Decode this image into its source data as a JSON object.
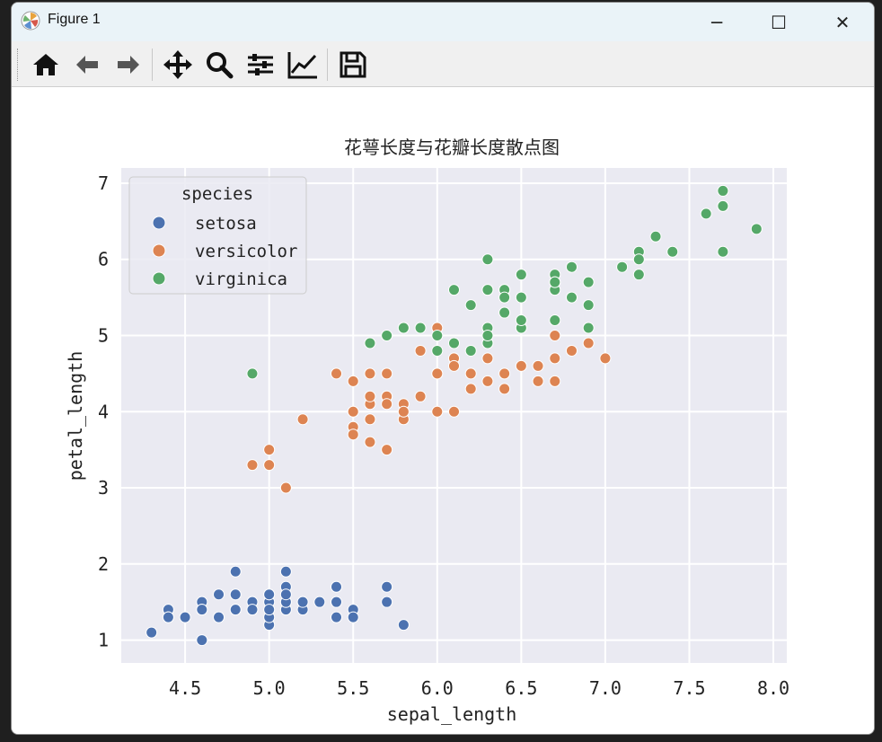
{
  "window": {
    "title": "Figure 1"
  },
  "window_controls": {
    "minimize": "─",
    "maximize": "☐",
    "close": "✕"
  },
  "toolbar": {
    "items": [
      {
        "name": "home-icon"
      },
      {
        "name": "back-icon"
      },
      {
        "name": "forward-icon"
      },
      {
        "name": "pan-icon"
      },
      {
        "name": "zoom-icon"
      },
      {
        "name": "configure-subplots-icon"
      },
      {
        "name": "edit-axis-icon"
      },
      {
        "name": "save-icon"
      }
    ]
  },
  "colors": {
    "setosa": "#4c72b0",
    "versicolor": "#dd8452",
    "virginica": "#55a868",
    "axes_bg": "#eaeaf2",
    "grid": "#ffffff"
  },
  "chart_data": {
    "type": "scatter",
    "title": "花萼长度与花瓣长度散点图",
    "xlabel": "sepal_length",
    "ylabel": "petal_length",
    "xlim": [
      4.12,
      8.08
    ],
    "ylim": [
      0.7,
      7.2
    ],
    "xticks": [
      4.5,
      5.0,
      5.5,
      6.0,
      6.5,
      7.0,
      7.5,
      8.0
    ],
    "xtick_labels": [
      "4.5",
      "5.0",
      "5.5",
      "6.0",
      "6.5",
      "7.0",
      "7.5",
      "8.0"
    ],
    "yticks": [
      1,
      2,
      3,
      4,
      5,
      6,
      7
    ],
    "ytick_labels": [
      "1",
      "2",
      "3",
      "4",
      "5",
      "6",
      "7"
    ],
    "grid": true,
    "legend": {
      "title": "species",
      "location": "upper left"
    },
    "series": [
      {
        "name": "setosa",
        "x": [
          5.1,
          4.9,
          4.7,
          4.6,
          5.0,
          5.4,
          4.6,
          5.0,
          4.4,
          4.9,
          5.4,
          4.8,
          4.8,
          4.3,
          5.8,
          5.7,
          5.4,
          5.1,
          5.7,
          5.1,
          5.4,
          5.1,
          4.6,
          5.1,
          4.8,
          5.0,
          5.0,
          5.2,
          5.2,
          4.7,
          4.8,
          5.4,
          5.2,
          5.5,
          4.9,
          5.0,
          5.5,
          4.9,
          4.4,
          5.1,
          5.0,
          4.5,
          4.4,
          5.0,
          5.1,
          4.8,
          5.1,
          4.6,
          5.3,
          5.0
        ],
        "y": [
          1.4,
          1.4,
          1.3,
          1.5,
          1.4,
          1.7,
          1.4,
          1.5,
          1.4,
          1.5,
          1.5,
          1.6,
          1.4,
          1.1,
          1.2,
          1.5,
          1.3,
          1.4,
          1.7,
          1.5,
          1.7,
          1.5,
          1.0,
          1.7,
          1.9,
          1.6,
          1.6,
          1.5,
          1.4,
          1.6,
          1.6,
          1.5,
          1.5,
          1.4,
          1.5,
          1.2,
          1.3,
          1.4,
          1.3,
          1.5,
          1.3,
          1.3,
          1.3,
          1.6,
          1.9,
          1.4,
          1.6,
          1.4,
          1.5,
          1.4
        ]
      },
      {
        "name": "versicolor",
        "x": [
          7.0,
          6.4,
          6.9,
          5.5,
          6.5,
          5.7,
          6.3,
          4.9,
          6.6,
          5.2,
          5.0,
          5.9,
          6.0,
          6.1,
          5.6,
          6.7,
          5.6,
          5.8,
          6.2,
          5.6,
          5.9,
          6.1,
          6.3,
          6.1,
          6.4,
          6.6,
          6.8,
          6.7,
          6.0,
          5.7,
          5.5,
          5.5,
          5.8,
          6.0,
          5.4,
          6.0,
          6.7,
          6.3,
          5.6,
          5.5,
          5.5,
          6.1,
          5.8,
          5.0,
          5.6,
          5.7,
          5.7,
          6.2,
          5.1,
          5.7
        ],
        "y": [
          4.7,
          4.5,
          4.9,
          4.0,
          4.6,
          4.5,
          4.7,
          3.3,
          4.6,
          3.9,
          3.5,
          4.2,
          4.0,
          4.7,
          3.6,
          4.4,
          4.5,
          4.1,
          4.5,
          3.9,
          4.8,
          4.0,
          4.9,
          4.7,
          4.3,
          4.4,
          4.8,
          5.0,
          4.5,
          3.5,
          3.8,
          3.7,
          3.9,
          5.1,
          4.5,
          4.5,
          4.7,
          4.4,
          4.1,
          4.0,
          4.4,
          4.6,
          4.0,
          3.3,
          4.2,
          4.2,
          4.2,
          4.3,
          3.0,
          4.1
        ]
      },
      {
        "name": "virginica",
        "x": [
          6.3,
          5.8,
          7.1,
          6.3,
          6.5,
          7.6,
          4.9,
          7.3,
          6.7,
          7.2,
          6.5,
          6.4,
          6.8,
          5.7,
          5.8,
          6.4,
          6.5,
          7.7,
          7.7,
          6.0,
          6.9,
          5.6,
          7.7,
          6.3,
          6.7,
          7.2,
          6.2,
          6.1,
          6.4,
          7.2,
          7.4,
          7.9,
          6.4,
          6.3,
          6.1,
          7.7,
          6.3,
          6.4,
          6.0,
          6.9,
          6.7,
          6.9,
          5.8,
          6.8,
          6.7,
          6.7,
          6.3,
          6.5,
          6.2,
          5.9
        ],
        "y": [
          6.0,
          5.1,
          5.9,
          5.6,
          5.8,
          6.6,
          4.5,
          6.3,
          5.8,
          6.1,
          5.1,
          5.3,
          5.5,
          5.0,
          5.1,
          5.3,
          5.5,
          6.7,
          6.9,
          5.0,
          5.7,
          4.9,
          6.7,
          4.9,
          5.7,
          6.0,
          4.8,
          4.9,
          5.6,
          5.8,
          6.1,
          6.4,
          5.6,
          5.1,
          5.6,
          6.1,
          5.6,
          5.5,
          4.8,
          5.4,
          5.6,
          5.1,
          5.1,
          5.9,
          5.7,
          5.2,
          5.0,
          5.2,
          5.4,
          5.1
        ]
      }
    ]
  }
}
